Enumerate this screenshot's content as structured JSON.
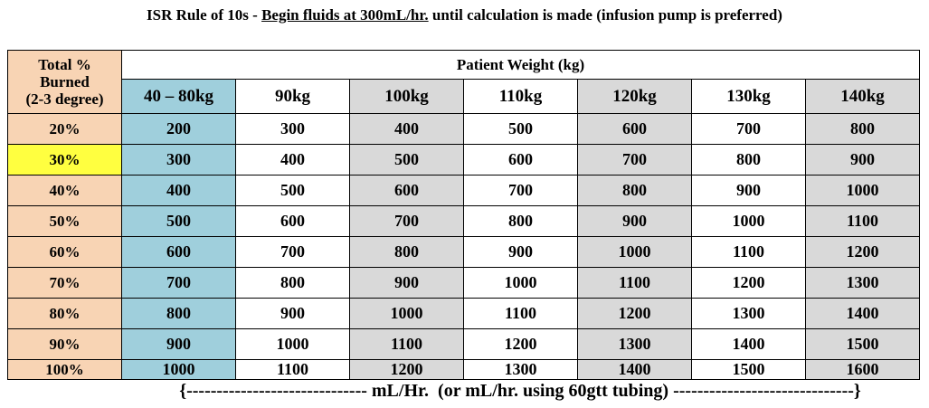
{
  "header": {
    "title_prefix": "ISR Rule of 10s - ",
    "title_underlined": "Begin fluids at 300mL/hr.",
    "title_suffix": " until calculation is made (infusion pump is preferred)"
  },
  "table": {
    "row_header": [
      "Total %",
      "Burned",
      "(2-3 degree)"
    ],
    "group_header": "Patient Weight (kg)",
    "columns": [
      "40 – 80kg",
      "90kg",
      "100kg",
      "110kg",
      "120kg",
      "130kg",
      "140kg"
    ],
    "rows": [
      [
        "20%",
        200,
        300,
        400,
        500,
        600,
        700,
        800
      ],
      [
        "30%",
        300,
        400,
        500,
        600,
        700,
        800,
        900
      ],
      [
        "40%",
        400,
        500,
        600,
        700,
        800,
        900,
        1000
      ],
      [
        "50%",
        500,
        600,
        700,
        800,
        900,
        1000,
        1100
      ],
      [
        "60%",
        600,
        700,
        800,
        900,
        1000,
        1100,
        1200
      ],
      [
        "70%",
        700,
        800,
        900,
        1000,
        1100,
        1200,
        1300
      ],
      [
        "80%",
        800,
        900,
        1000,
        1100,
        1200,
        1300,
        1400
      ],
      [
        "90%",
        900,
        1000,
        1100,
        1200,
        1300,
        1400,
        1500
      ],
      [
        "100%",
        1000,
        1100,
        1200,
        1300,
        1400,
        1500,
        1600
      ]
    ],
    "highlighted_row": 1
  },
  "footer": "{------------------------------ mL/Hr.  (or mL/hr. using 60gtt tubing) ------------------------------}"
}
